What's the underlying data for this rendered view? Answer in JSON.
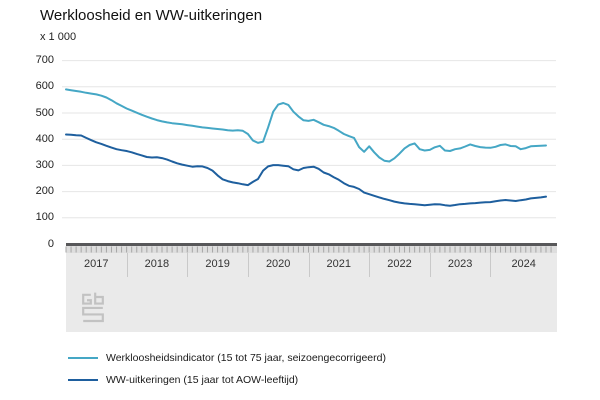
{
  "chart_data": {
    "type": "line",
    "title": "Werkloosheid en WW-uitkeringen",
    "unit": "x 1 000",
    "xlabel": "",
    "ylabel": "x 1 000",
    "ylim": [
      0,
      700
    ],
    "yticks": [
      0,
      100,
      200,
      300,
      400,
      500,
      600,
      700
    ],
    "grid": true,
    "legend_position": "bottom",
    "x_frequency": "monthly",
    "x_start": "2017-01",
    "x_end": "2024-12",
    "year_labels": [
      "2017",
      "2018",
      "2019",
      "2020",
      "2021",
      "2022",
      "2023",
      "2024"
    ],
    "series": [
      {
        "name": "Werkloosheidsindicator (15 tot 75 jaar, seizoengecorrigeerd)",
        "color": "#45a7c5",
        "values": [
          590,
          587,
          584,
          581,
          577,
          574,
          571,
          566,
          559,
          549,
          537,
          527,
          517,
          509,
          501,
          493,
          486,
          479,
          473,
          468,
          464,
          461,
          459,
          457,
          454,
          451,
          448,
          445,
          443,
          441,
          439,
          437,
          434,
          433,
          434,
          432,
          420,
          395,
          386,
          391,
          445,
          505,
          532,
          538,
          531,
          505,
          487,
          472,
          470,
          474,
          465,
          455,
          450,
          443,
          432,
          420,
          412,
          405,
          370,
          352,
          373,
          350,
          330,
          318,
          315,
          327,
          345,
          365,
          378,
          384,
          362,
          357,
          359,
          369,
          375,
          357,
          355,
          362,
          365,
          372,
          380,
          374,
          370,
          368,
          367,
          371,
          378,
          380,
          374,
          373,
          362,
          366,
          373,
          374,
          375,
          376
        ]
      },
      {
        "name": "WW-uitkeringen (15 jaar tot AOW-leeftijd)",
        "color": "#1e5f9e",
        "values": [
          418,
          417,
          415,
          414,
          405,
          396,
          388,
          382,
          375,
          368,
          362,
          358,
          355,
          350,
          344,
          338,
          332,
          330,
          331,
          328,
          322,
          315,
          308,
          303,
          299,
          295,
          297,
          296,
          290,
          280,
          262,
          247,
          240,
          235,
          232,
          228,
          225,
          237,
          248,
          280,
          296,
          301,
          301,
          299,
          297,
          285,
          281,
          290,
          293,
          295,
          287,
          273,
          266,
          255,
          245,
          232,
          222,
          218,
          210,
          196,
          190,
          184,
          178,
          172,
          167,
          162,
          158,
          155,
          153,
          152,
          150,
          148,
          150,
          152,
          151,
          148,
          146,
          149,
          152,
          153,
          155,
          156,
          158,
          159,
          160,
          163,
          166,
          168,
          166,
          164,
          167,
          170,
          174,
          176,
          178,
          181
        ]
      }
    ]
  },
  "colors": {
    "gridline": "#e6e6e6",
    "axis_ruler_bar": "#58585a",
    "axis_tick": "#a6a6a6",
    "axis_tick_strip": "#dedede",
    "year_band": "#eaeaea",
    "year_divider": "#c9c9c9",
    "logo_gray": "#c2c2c2"
  },
  "logo": {
    "name": "cbs-logo"
  }
}
